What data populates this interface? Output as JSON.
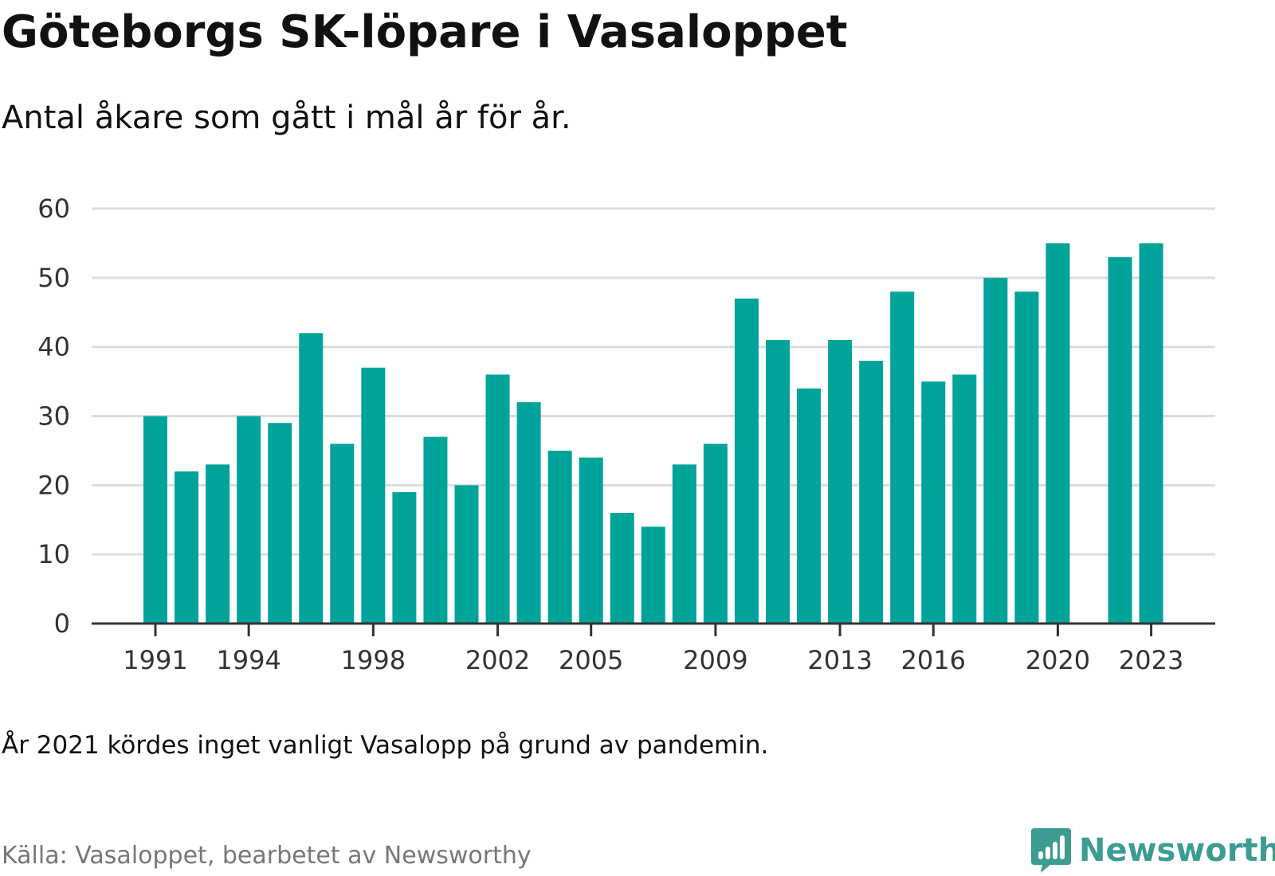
{
  "header": {
    "title": "Göteborgs SK-löpare i Vasaloppet",
    "subtitle": "Antal åkare som gått i mål år för år."
  },
  "footer": {
    "note": "År 2021 kördes inget vanligt Vasalopp på grund av pandemin.",
    "source": "Källa: Vasaloppet, bearbetet av Newsworthy",
    "brand_name": "Newsworthy",
    "brand_icon": "bar-chart-speech-bubble-icon"
  },
  "colors": {
    "bar": "#00a39a",
    "gridline": "#dddddd",
    "axis": "#333333",
    "tick_text": "#333333",
    "brand": "#3c9c92",
    "source_text": "#777777"
  },
  "chart_data": {
    "type": "bar",
    "ylim": [
      0,
      60
    ],
    "yticks": [
      "0",
      "10",
      "20",
      "30",
      "40",
      "50",
      "60"
    ],
    "xtick_labels": [
      "1991",
      "1994",
      "1998",
      "2002",
      "2005",
      "2009",
      "2013",
      "2016",
      "2020",
      "2023"
    ],
    "grid": true,
    "categories": [
      "1991",
      "1992",
      "1993",
      "1994",
      "1995",
      "1996",
      "1997",
      "1998",
      "1999",
      "2000",
      "2001",
      "2002",
      "2003",
      "2004",
      "2005",
      "2006",
      "2007",
      "2008",
      "2009",
      "2010",
      "2011",
      "2012",
      "2013",
      "2014",
      "2015",
      "2016",
      "2017",
      "2018",
      "2019",
      "2020",
      "2021",
      "2022",
      "2023"
    ],
    "values": [
      30,
      22,
      23,
      30,
      29,
      42,
      26,
      37,
      19,
      27,
      20,
      36,
      32,
      25,
      24,
      16,
      14,
      23,
      26,
      47,
      41,
      34,
      41,
      38,
      48,
      35,
      36,
      50,
      48,
      55,
      null,
      53,
      55
    ]
  }
}
